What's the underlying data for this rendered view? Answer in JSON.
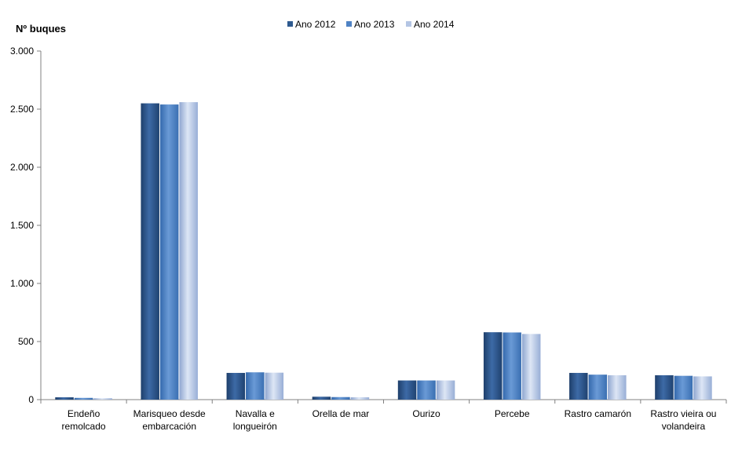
{
  "chart_data": {
    "type": "bar",
    "ylabel": "Nº  buques",
    "ylim": [
      0,
      3000
    ],
    "yticks": [
      0,
      500,
      1000,
      1500,
      2000,
      2500,
      3000
    ],
    "ytick_labels": [
      "0",
      "500",
      "1.000",
      "1.500",
      "2.000",
      "2.500",
      "3.000"
    ],
    "grid": false,
    "legend_position": "top",
    "categories": [
      [
        "Endeño",
        "remolcado"
      ],
      [
        "Marisqueo desde",
        "embarcación"
      ],
      [
        "Navalla e",
        "longueirón"
      ],
      [
        "Orella de mar"
      ],
      [
        "Ourizo"
      ],
      [
        "Percebe"
      ],
      [
        "Rastro camarón"
      ],
      [
        "Rastro vieira ou",
        "volandeira"
      ]
    ],
    "series": [
      {
        "name": "Ano 2012",
        "color": "#2e5a8f",
        "values": [
          20,
          2550,
          230,
          25,
          165,
          580,
          230,
          210
        ]
      },
      {
        "name": "Ano 2013",
        "color": "#4f82c4",
        "values": [
          15,
          2540,
          235,
          22,
          165,
          578,
          215,
          205
        ]
      },
      {
        "name": "Ano 2014",
        "color": "#b4c5e4",
        "values": [
          12,
          2560,
          232,
          20,
          165,
          565,
          210,
          200
        ]
      }
    ]
  }
}
